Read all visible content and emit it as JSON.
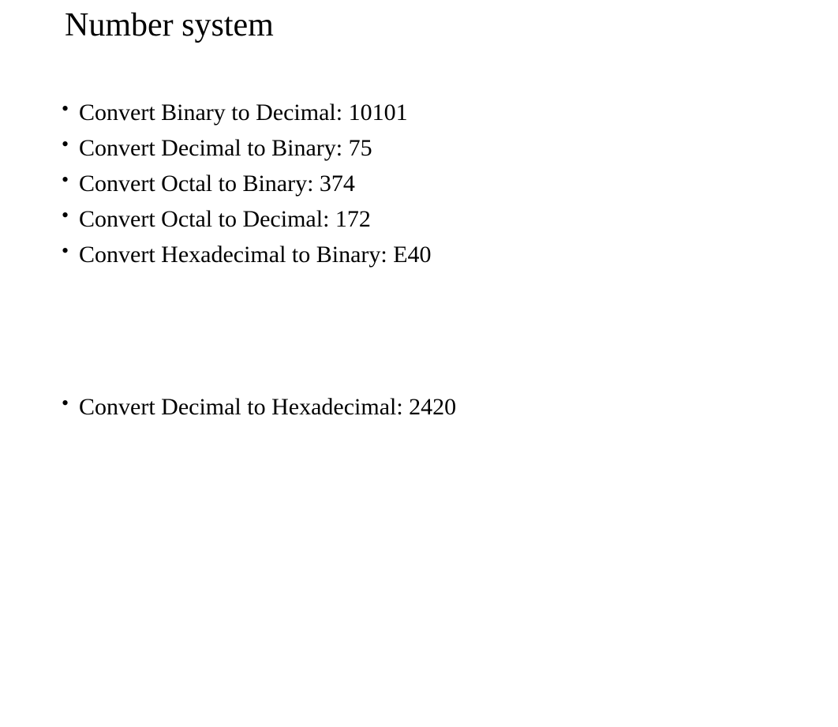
{
  "title": "Number system",
  "items_group1": [
    "Convert Binary to Decimal: 10101",
    "Convert Decimal to Binary: 75",
    "Convert Octal to Binary: 374",
    "Convert Octal to Decimal: 172",
    "Convert Hexadecimal to Binary: E40"
  ],
  "items_group2": [
    "Convert Decimal to Hexadecimal: 2420"
  ],
  "colors": {
    "background": "#ffffff",
    "text": "#000000"
  },
  "typography": {
    "title_fontsize": 42,
    "item_fontsize": 30,
    "font_family": "Times New Roman"
  }
}
